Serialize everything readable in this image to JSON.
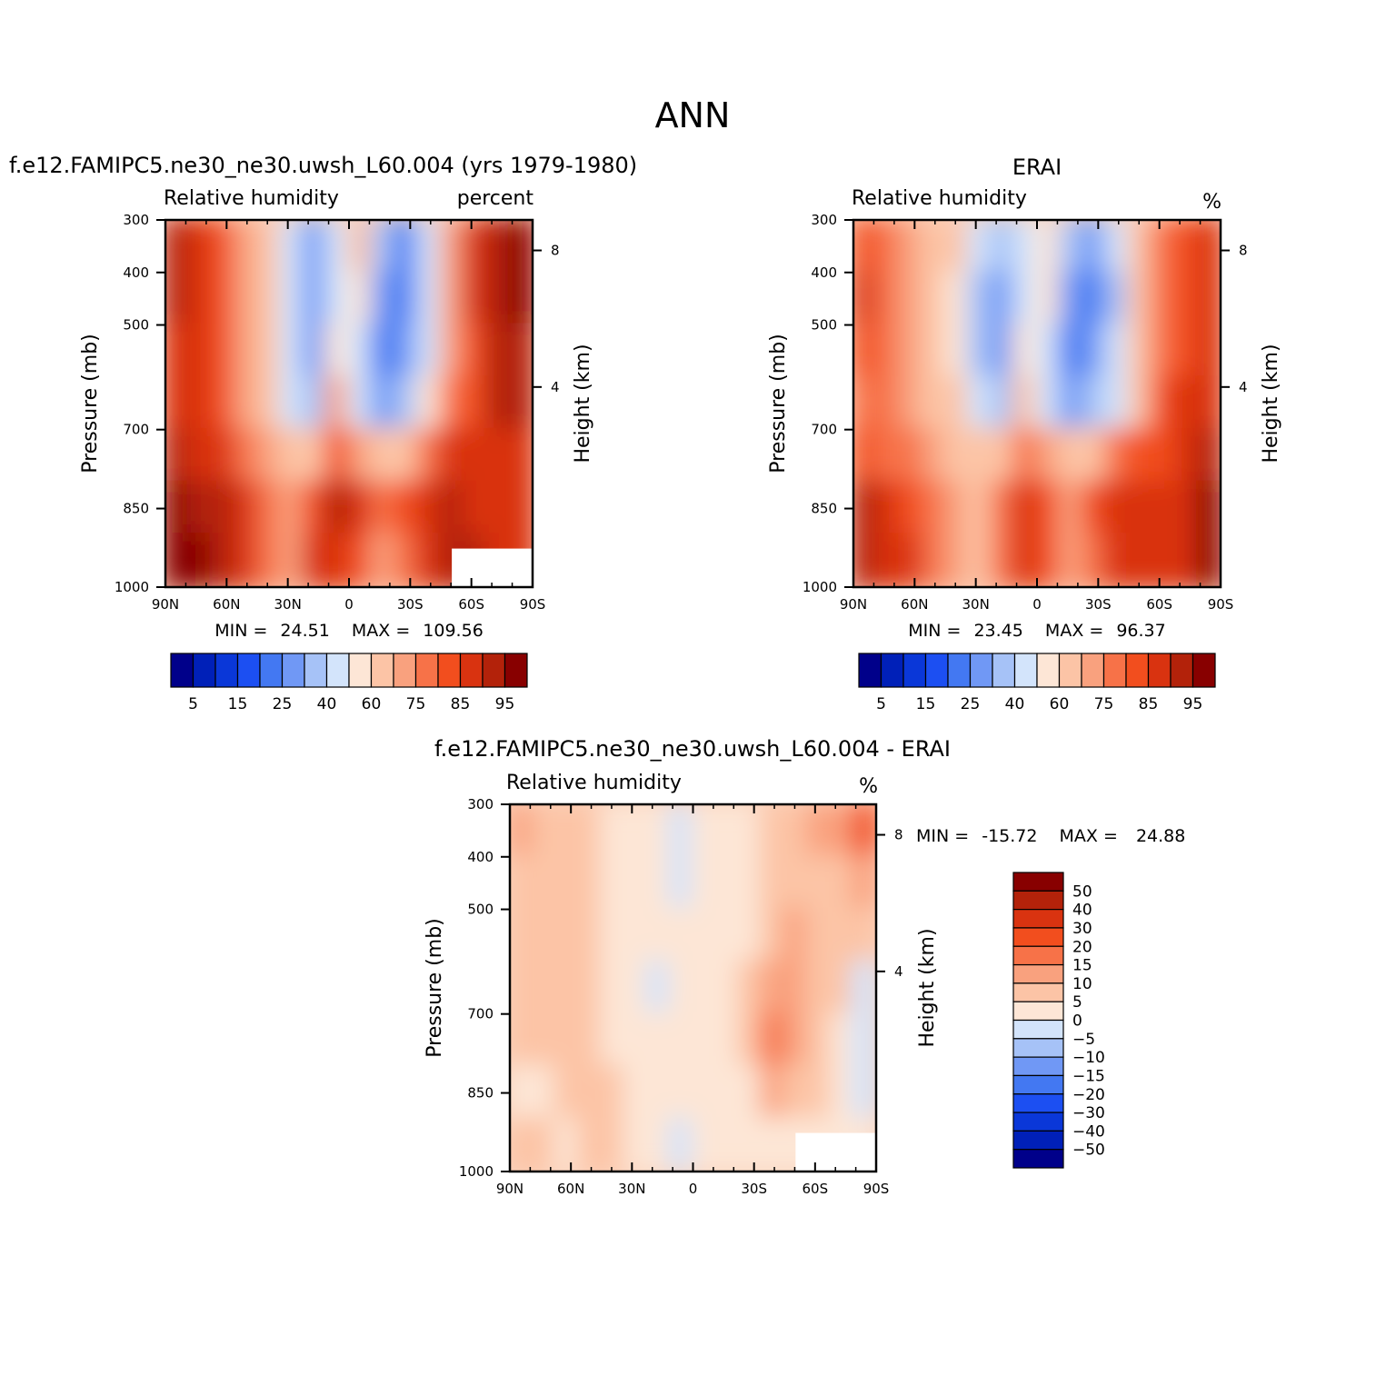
{
  "chart_data": {
    "type": "heatmap",
    "title": "ANN",
    "panels": [
      {
        "case_title": "f.e12.FAMIPC5.ne30_ne30.uwsh_L60.004 (yrs 1979-1980)",
        "left_label": "Relative humidity",
        "right_label": "percent",
        "ylabel": "Pressure (mb)",
        "ylabel_right": "Height (km)",
        "x_ticks": [
          "90N",
          "60N",
          "30N",
          "0",
          "30S",
          "60S",
          "90S"
        ],
        "y_ticks": [
          "300",
          "400",
          "500",
          "700",
          "850",
          "1000"
        ],
        "right_ticks": [
          "8",
          "4"
        ],
        "min_text": "MIN =",
        "min_value": "24.51",
        "max_text": "MAX =",
        "max_value": "109.56",
        "levels": [
          5,
          10,
          15,
          20,
          25,
          30,
          40,
          50,
          60,
          70,
          75,
          80,
          85,
          90,
          95
        ],
        "level_labels": [
          "5",
          "15",
          "25",
          "40",
          "60",
          "75",
          "85",
          "95"
        ],
        "colors": [
          "#00008a",
          "#0020b8",
          "#0a37d8",
          "#1c4ff2",
          "#4378f2",
          "#7098f5",
          "#a6c2f7",
          "#d3e4fb",
          "#fde6d6",
          "#fcc4a6",
          "#f9a17e",
          "#f77248",
          "#f24e1e",
          "#d93310",
          "#b3220a",
          "#880000"
        ],
        "field_sample": [
          [
            90,
            85,
            80,
            70,
            60,
            40,
            25,
            40,
            60,
            30,
            20,
            40,
            70,
            85,
            90,
            95
          ],
          [
            90,
            85,
            80,
            70,
            60,
            40,
            25,
            45,
            50,
            25,
            20,
            40,
            70,
            85,
            90,
            95
          ],
          [
            88,
            85,
            80,
            70,
            60,
            40,
            25,
            50,
            40,
            20,
            25,
            45,
            70,
            80,
            90,
            90
          ],
          [
            88,
            85,
            80,
            70,
            60,
            45,
            30,
            70,
            40,
            25,
            30,
            50,
            75,
            80,
            90,
            90
          ],
          [
            90,
            88,
            85,
            75,
            70,
            60,
            60,
            80,
            70,
            60,
            65,
            75,
            85,
            85,
            85,
            85
          ],
          [
            95,
            90,
            90,
            85,
            75,
            70,
            80,
            90,
            85,
            75,
            80,
            85,
            90,
            88,
            85,
            85
          ],
          [
            99,
            95,
            90,
            85,
            75,
            70,
            85,
            85,
            80,
            70,
            75,
            85,
            90,
            90,
            88,
            85
          ]
        ]
      },
      {
        "case_title": "ERAI",
        "left_label": "Relative humidity",
        "right_label": "%",
        "ylabel": "Pressure (mb)",
        "ylabel_right": "Height (km)",
        "x_ticks": [
          "90N",
          "60N",
          "30N",
          "0",
          "30S",
          "60S",
          "90S"
        ],
        "y_ticks": [
          "300",
          "400",
          "500",
          "700",
          "850",
          "1000"
        ],
        "right_ticks": [
          "8",
          "4"
        ],
        "min_text": "MIN =",
        "min_value": "23.45",
        "max_text": "MAX =",
        "max_value": "96.37",
        "levels": [
          5,
          10,
          15,
          20,
          25,
          30,
          40,
          50,
          60,
          70,
          75,
          80,
          85,
          90,
          95
        ],
        "level_labels": [
          "5",
          "15",
          "25",
          "40",
          "60",
          "75",
          "85",
          "95"
        ],
        "colors": [
          "#00008a",
          "#0020b8",
          "#0a37d8",
          "#1c4ff2",
          "#4378f2",
          "#7098f5",
          "#a6c2f7",
          "#d3e4fb",
          "#fde6d6",
          "#fcc4a6",
          "#f9a17e",
          "#f77248",
          "#f24e1e",
          "#d93310",
          "#b3220a",
          "#880000"
        ],
        "field_sample": [
          [
            80,
            75,
            70,
            65,
            60,
            40,
            30,
            45,
            55,
            30,
            25,
            40,
            60,
            75,
            80,
            85
          ],
          [
            85,
            75,
            70,
            65,
            55,
            35,
            25,
            40,
            50,
            25,
            20,
            35,
            60,
            75,
            80,
            85
          ],
          [
            80,
            75,
            70,
            65,
            55,
            35,
            25,
            50,
            45,
            20,
            25,
            40,
            65,
            75,
            80,
            85
          ],
          [
            75,
            75,
            70,
            65,
            60,
            45,
            30,
            60,
            45,
            25,
            30,
            45,
            65,
            80,
            85,
            88
          ],
          [
            80,
            78,
            75,
            70,
            65,
            60,
            60,
            75,
            70,
            60,
            65,
            75,
            80,
            80,
            85,
            90
          ],
          [
            90,
            85,
            80,
            75,
            70,
            65,
            75,
            85,
            80,
            70,
            80,
            85,
            88,
            85,
            85,
            95
          ],
          [
            92,
            88,
            85,
            75,
            70,
            65,
            75,
            85,
            80,
            70,
            75,
            85,
            85,
            85,
            85,
            96
          ]
        ]
      },
      {
        "case_title": "f.e12.FAMIPC5.ne30_ne30.uwsh_L60.004 - ERAI",
        "left_label": "Relative humidity",
        "right_label": "%",
        "ylabel": "Pressure (mb)",
        "ylabel_right": "Height (km)",
        "x_ticks": [
          "90N",
          "60N",
          "30N",
          "0",
          "30S",
          "60S",
          "90S"
        ],
        "y_ticks": [
          "300",
          "400",
          "500",
          "700",
          "850",
          "1000"
        ],
        "right_ticks": [
          "8",
          "4"
        ],
        "min_text": "MIN =",
        "min_value": "-15.72",
        "max_text": "MAX =",
        "max_value": "24.88",
        "levels": [
          -50,
          -40,
          -30,
          -20,
          -15,
          -10,
          -5,
          0,
          5,
          10,
          15,
          20,
          30,
          40,
          50
        ],
        "level_labels": [
          "50",
          "40",
          "30",
          "20",
          "15",
          "10",
          "5",
          "0",
          "−5",
          "−10",
          "−15",
          "−20",
          "−30",
          "−40",
          "−50"
        ],
        "colors": [
          "#00008a",
          "#0020b8",
          "#0a37d8",
          "#1c4ff2",
          "#4378f2",
          "#7098f5",
          "#a6c2f7",
          "#d3e4fb",
          "#fde6d6",
          "#fcc4a6",
          "#f9a17e",
          "#f77248",
          "#f24e1e",
          "#d93310",
          "#b3220a",
          "#880000"
        ],
        "field_sample": [
          [
            10,
            7,
            7,
            6,
            4,
            3,
            3,
            -2,
            3,
            3,
            3,
            5,
            8,
            10,
            12,
            20
          ],
          [
            8,
            7,
            7,
            6,
            4,
            3,
            3,
            -3,
            3,
            3,
            3,
            5,
            8,
            8,
            7,
            12
          ],
          [
            7,
            7,
            7,
            6,
            4,
            3,
            3,
            1,
            3,
            3,
            3,
            5,
            10,
            8,
            7,
            7
          ],
          [
            7,
            7,
            7,
            6,
            4,
            3,
            -1,
            1,
            3,
            3,
            5,
            10,
            12,
            8,
            6,
            -2
          ],
          [
            6,
            6,
            6,
            5,
            4,
            3,
            3,
            1,
            3,
            3,
            5,
            15,
            12,
            6,
            4,
            -4
          ],
          [
            4,
            2,
            5,
            5,
            5,
            3,
            3,
            1,
            3,
            3,
            3,
            10,
            6,
            5,
            3,
            -3
          ],
          [
            5,
            5,
            3,
            5,
            5,
            3,
            3,
            -2,
            3,
            3,
            3,
            3,
            3,
            3,
            3,
            3
          ]
        ]
      }
    ]
  }
}
